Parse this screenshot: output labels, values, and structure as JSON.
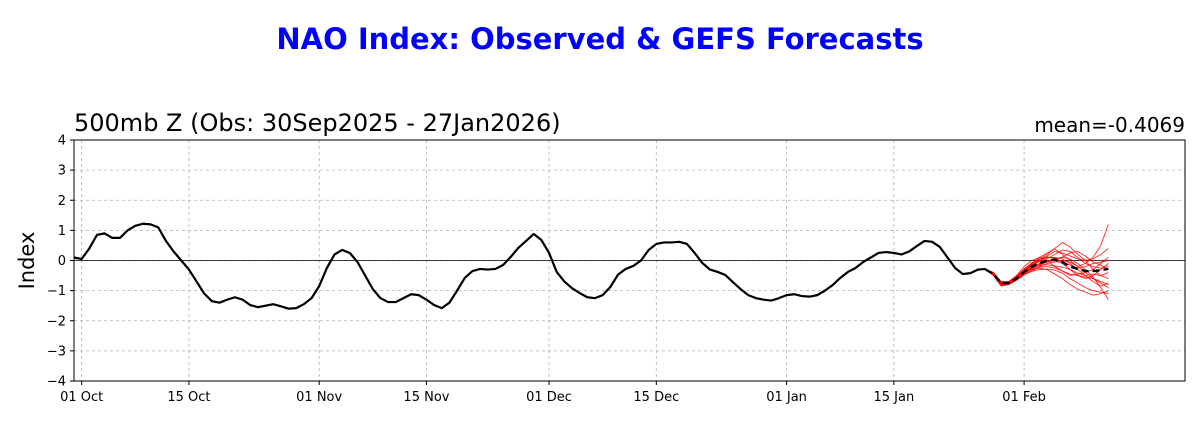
{
  "suptitle": "NAO Index: Observed & GEFS Forecasts",
  "left_title": "500mb Z (Obs: 30Sep2025 - 27Jan2026)",
  "right_title": "mean=-0.4069",
  "colors": {
    "suptitle": "#0000ff",
    "observed": "#000000",
    "members": "#ff0000",
    "ensemble_mean": "#000000",
    "grid": "#b0b0b0"
  },
  "chart_data": {
    "type": "line",
    "title": "500mb Z (Obs: 30Sep2025 - 27Jan2026)",
    "ylabel": "Index",
    "xlabel": "",
    "ylim": [
      -4,
      4
    ],
    "yticks": [
      -4,
      -3,
      -2,
      -1,
      0,
      1,
      2,
      3,
      4
    ],
    "x_start": "2025-09-30",
    "x_end": "2026-02-22",
    "xticks": [
      {
        "date": "2025-10-01",
        "label": "01 Oct"
      },
      {
        "date": "2025-10-15",
        "label": "15 Oct"
      },
      {
        "date": "2025-11-01",
        "label": "01 Nov"
      },
      {
        "date": "2025-11-15",
        "label": "15 Nov"
      },
      {
        "date": "2025-12-01",
        "label": "01 Dec"
      },
      {
        "date": "2025-12-15",
        "label": "15 Dec"
      },
      {
        "date": "2026-01-01",
        "label": "01 Jan"
      },
      {
        "date": "2026-01-15",
        "label": "15 Jan"
      },
      {
        "date": "2026-02-01",
        "label": "01 Feb"
      }
    ],
    "grid": true,
    "zero_line": true,
    "observed": {
      "start_date": "2025-09-30",
      "values": [
        0.1,
        0.05,
        0.4,
        0.85,
        0.9,
        0.75,
        0.75,
        1.0,
        1.15,
        1.22,
        1.2,
        1.1,
        0.65,
        0.3,
        0.0,
        -0.3,
        -0.7,
        -1.1,
        -1.35,
        -1.4,
        -1.3,
        -1.22,
        -1.3,
        -1.48,
        -1.55,
        -1.5,
        -1.45,
        -1.52,
        -1.6,
        -1.58,
        -1.45,
        -1.25,
        -0.85,
        -0.25,
        0.2,
        0.35,
        0.25,
        -0.05,
        -0.5,
        -0.95,
        -1.25,
        -1.38,
        -1.38,
        -1.25,
        -1.12,
        -1.15,
        -1.3,
        -1.48,
        -1.58,
        -1.4,
        -1.0,
        -0.58,
        -0.35,
        -0.28,
        -0.3,
        -0.28,
        -0.15,
        0.12,
        0.42,
        0.65,
        0.88,
        0.68,
        0.25,
        -0.38,
        -0.7,
        -0.92,
        -1.08,
        -1.22,
        -1.25,
        -1.15,
        -0.88,
        -0.47,
        -0.28,
        -0.18,
        0.0,
        0.35,
        0.55,
        0.6,
        0.6,
        0.62,
        0.55,
        0.25,
        -0.08,
        -0.3,
        -0.38,
        -0.48,
        -0.72,
        -0.95,
        -1.15,
        -1.25,
        -1.3,
        -1.33,
        -1.25,
        -1.15,
        -1.12,
        -1.18,
        -1.2,
        -1.15,
        -1.0,
        -0.82,
        -0.58,
        -0.38,
        -0.25,
        -0.05,
        0.1,
        0.25,
        0.28,
        0.25,
        0.2,
        0.3,
        0.48,
        0.65,
        0.62,
        0.45,
        0.1,
        -0.25,
        -0.45,
        -0.42,
        -0.3,
        -0.28
      ]
    },
    "forecast": {
      "start_date": "2026-01-27",
      "ensemble_mean": [
        -0.3,
        -0.45,
        -0.75,
        -0.75,
        -0.6,
        -0.38,
        -0.2,
        -0.1,
        0.0,
        0.03,
        -0.05,
        -0.2,
        -0.28,
        -0.35,
        -0.35,
        -0.32,
        -0.28
      ],
      "members": [
        [
          -0.3,
          -0.5,
          -0.85,
          -0.8,
          -0.55,
          -0.3,
          -0.1,
          0.1,
          0.25,
          0.38,
          0.2,
          0.0,
          -0.2,
          -0.1,
          0.1,
          0.5,
          1.2
        ],
        [
          -0.3,
          -0.4,
          -0.7,
          -0.7,
          -0.5,
          -0.2,
          0.0,
          0.1,
          0.0,
          -0.2,
          -0.35,
          -0.5,
          -0.45,
          -0.4,
          -0.3,
          -0.1,
          0.1
        ],
        [
          -0.3,
          -0.45,
          -0.8,
          -0.75,
          -0.6,
          -0.4,
          -0.3,
          -0.25,
          -0.3,
          -0.45,
          -0.6,
          -0.8,
          -0.95,
          -1.05,
          -1.15,
          -1.1,
          -1.0
        ],
        [
          -0.3,
          -0.5,
          -0.75,
          -0.7,
          -0.55,
          -0.35,
          -0.25,
          -0.1,
          0.05,
          0.2,
          0.35,
          0.3,
          0.1,
          -0.1,
          -0.2,
          -0.25,
          -0.2
        ],
        [
          -0.3,
          -0.45,
          -0.7,
          -0.8,
          -0.65,
          -0.45,
          -0.35,
          -0.2,
          -0.1,
          -0.05,
          0.0,
          -0.05,
          -0.2,
          -0.4,
          -0.6,
          -0.75,
          -0.9
        ],
        [
          -0.3,
          -0.4,
          -0.75,
          -0.72,
          -0.58,
          -0.38,
          -0.15,
          0.05,
          0.2,
          0.4,
          0.6,
          0.45,
          0.2,
          0.0,
          -0.3,
          -0.5,
          -0.4
        ],
        [
          -0.3,
          -0.48,
          -0.82,
          -0.78,
          -0.62,
          -0.42,
          -0.28,
          -0.15,
          -0.05,
          0.05,
          0.1,
          0.05,
          -0.1,
          -0.3,
          -0.55,
          -0.9,
          -1.3
        ],
        [
          -0.3,
          -0.42,
          -0.72,
          -0.74,
          -0.6,
          -0.36,
          -0.18,
          -0.02,
          0.1,
          0.1,
          0.05,
          -0.1,
          -0.3,
          -0.5,
          -0.7,
          -0.85,
          -0.75
        ],
        [
          -0.3,
          -0.46,
          -0.78,
          -0.76,
          -0.62,
          -0.4,
          -0.22,
          -0.12,
          -0.05,
          0.0,
          -0.1,
          -0.3,
          -0.5,
          -0.6,
          -0.5,
          -0.3,
          -0.1
        ],
        [
          -0.3,
          -0.44,
          -0.74,
          -0.72,
          -0.54,
          -0.32,
          -0.12,
          0.0,
          0.15,
          0.3,
          0.25,
          0.15,
          0.05,
          0.0,
          0.05,
          0.2,
          0.4
        ],
        [
          -0.3,
          -0.47,
          -0.8,
          -0.77,
          -0.63,
          -0.43,
          -0.3,
          -0.22,
          -0.2,
          -0.25,
          -0.35,
          -0.45,
          -0.5,
          -0.55,
          -0.6,
          -0.7,
          -0.8
        ],
        [
          -0.3,
          -0.43,
          -0.73,
          -0.7,
          -0.52,
          -0.28,
          -0.08,
          0.05,
          0.12,
          0.08,
          -0.05,
          -0.15,
          -0.25,
          -0.2,
          -0.1,
          -0.05,
          0.0
        ],
        [
          -0.3,
          -0.49,
          -0.83,
          -0.79,
          -0.66,
          -0.48,
          -0.36,
          -0.3,
          -0.28,
          -0.32,
          -0.42,
          -0.6,
          -0.75,
          -0.9,
          -1.0,
          -1.05,
          -1.1
        ],
        [
          -0.3,
          -0.41,
          -0.71,
          -0.73,
          -0.57,
          -0.33,
          -0.14,
          -0.04,
          0.0,
          0.02,
          0.12,
          0.25,
          0.3,
          0.15,
          -0.05,
          -0.15,
          -0.3
        ],
        [
          -0.3,
          -0.45,
          -0.76,
          -0.74,
          -0.61,
          -0.41,
          -0.26,
          -0.16,
          -0.14,
          -0.18,
          -0.22,
          -0.3,
          -0.42,
          -0.5,
          -0.45,
          -0.5,
          -0.6
        ]
      ]
    }
  },
  "labels": {
    "yticks": [
      "4",
      "3",
      "2",
      "1",
      "0",
      "−1",
      "−2",
      "−3",
      "−4"
    ],
    "xticks": [
      "01 Oct",
      "15 Oct",
      "01 Nov",
      "15 Nov",
      "01 Dec",
      "15 Dec",
      "01 Jan",
      "15 Jan",
      "01 Feb"
    ],
    "ylabel": "Index"
  }
}
